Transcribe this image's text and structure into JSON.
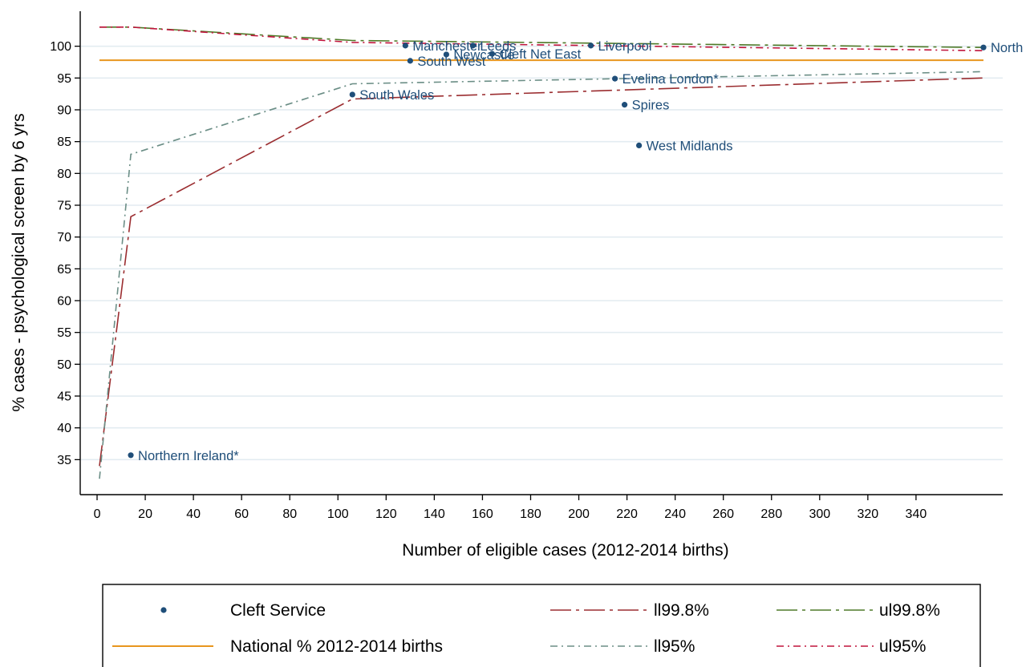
{
  "chart_data": {
    "type": "scatter",
    "xlabel": "Number of eligible cases (2012-2014 births)",
    "ylabel": "% cases - psychological screen by 6 yrs",
    "xlim": [
      -7,
      376
    ],
    "ylim": [
      29.5,
      105.5
    ],
    "xticks": [
      0,
      20,
      40,
      60,
      80,
      100,
      120,
      140,
      160,
      180,
      200,
      220,
      240,
      260,
      280,
      300,
      320,
      340
    ],
    "yticks": [
      35,
      40,
      45,
      50,
      55,
      60,
      65,
      70,
      75,
      80,
      85,
      90,
      95,
      100
    ],
    "grid": "horizontal",
    "legend_position": "bottom",
    "colors": {
      "points": "#1f4e79",
      "national": "#e8961e",
      "ll998": "#9b2d30",
      "ul998": "#4f7a28",
      "ll95": "#6b8e86",
      "ul95": "#c0143c",
      "grid": "#e3ecf1"
    },
    "points": {
      "name": "Cleft Service",
      "data": [
        {
          "label": "Northern Ireland*",
          "x": 14,
          "y": 35.7
        },
        {
          "label": "South Wales",
          "x": 106,
          "y": 92.4
        },
        {
          "label": "Manchester",
          "x": 128,
          "y": 100.1
        },
        {
          "label": "South West",
          "x": 130,
          "y": 97.7
        },
        {
          "label": "Newcastle",
          "x": 145,
          "y": 98.7
        },
        {
          "label": "Leeds",
          "x": 156,
          "y": 100.1
        },
        {
          "label": "Cleft Net East",
          "x": 164,
          "y": 98.8
        },
        {
          "label": "Liverpool",
          "x": 205,
          "y": 100.1
        },
        {
          "label": "Evelina London*",
          "x": 215,
          "y": 94.9
        },
        {
          "label": "Spires",
          "x": 219,
          "y": 90.8
        },
        {
          "label": "West Midlands",
          "x": 225,
          "y": 84.4
        },
        {
          "label": "North",
          "x": 368,
          "y": 99.8
        }
      ]
    },
    "national": {
      "name": "National %  2012-2014 births",
      "value": 97.8
    },
    "series": [
      {
        "name": "ll99.8%",
        "x": [
          1,
          14,
          106,
          368
        ],
        "values": [
          34.0,
          73.2,
          91.7,
          95.0
        ]
      },
      {
        "name": "ul99.8%",
        "x": [
          1,
          14,
          106,
          368
        ],
        "values": [
          103.0,
          103.0,
          100.9,
          99.8
        ]
      },
      {
        "name": "ll95%",
        "x": [
          1,
          14,
          106,
          368
        ],
        "values": [
          32.0,
          83.0,
          94.1,
          96.0
        ]
      },
      {
        "name": "ul95%",
        "x": [
          1,
          14,
          106,
          368
        ],
        "values": [
          103.0,
          103.0,
          100.6,
          99.3
        ]
      }
    ],
    "legend": {
      "items": [
        "Cleft Service",
        "ll99.8%",
        "ul99.8%",
        "National %  2012-2014 births",
        "ll95%",
        "ul95%"
      ]
    }
  }
}
